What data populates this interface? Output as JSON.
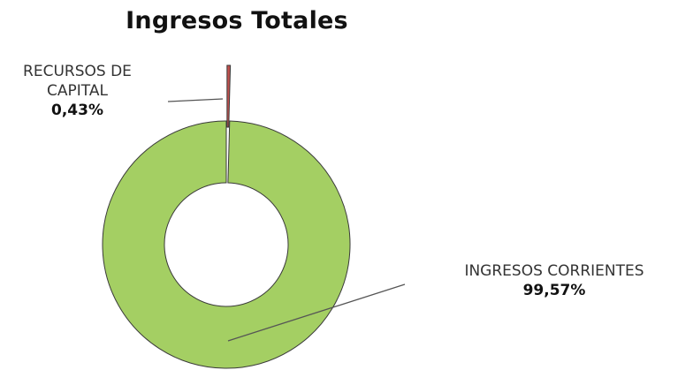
{
  "chart_data": {
    "type": "pie",
    "title": "Ingresos Totales",
    "slices": [
      {
        "label_lines": [
          "RECURSOS DE",
          "CAPITAL"
        ],
        "value": 0.43,
        "value_label": "0,43%",
        "color": "#c0504d"
      },
      {
        "label_lines": [
          "INGRESOS CORRIENTES"
        ],
        "value": 99.57,
        "value_label": "99,57%",
        "color": "#a4cf63"
      }
    ],
    "donut": true,
    "legend": "none"
  }
}
